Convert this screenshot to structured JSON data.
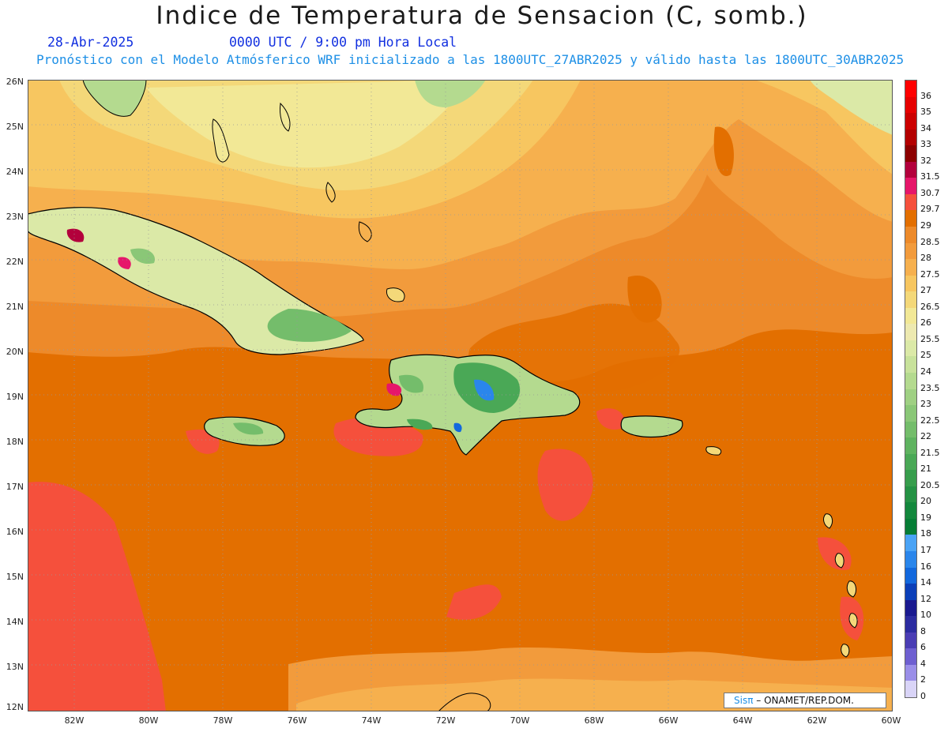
{
  "header": {
    "title": "Indice de Temperatura de Sensacion (C, somb.)",
    "date": "28-Abr-2025",
    "time": "0000 UTC / 9:00 pm Hora Local",
    "model_note": "Pronóstico con el Modelo Atmósferico WRF inicializado a las 1800UTC_27ABR2025 y válido hasta las  1800UTC_30ABR2025"
  },
  "axes": {
    "lat_labels": [
      "26N",
      "25N",
      "24N",
      "23N",
      "22N",
      "21N",
      "20N",
      "19N",
      "18N",
      "17N",
      "16N",
      "15N",
      "14N",
      "13N",
      "12N"
    ],
    "lon_labels": [
      "82W",
      "80W",
      "78W",
      "76W",
      "74W",
      "72W",
      "70W",
      "68W",
      "66W",
      "64W",
      "62W",
      "60W"
    ]
  },
  "colorbar": {
    "labels": [
      "36",
      "35",
      "34",
      "33",
      "32",
      "31.5",
      "30.7",
      "29.7",
      "29",
      "28.5",
      "28",
      "27.5",
      "27",
      "26.5",
      "26",
      "25.5",
      "25",
      "24",
      "23.5",
      "23",
      "22.5",
      "22",
      "21.5",
      "21",
      "20.5",
      "20",
      "19",
      "18",
      "17",
      "16",
      "14",
      "12",
      "10",
      "8",
      "6",
      "4",
      "2",
      "0"
    ],
    "colors": [
      "#ff0000",
      "#e60000",
      "#cc0000",
      "#b30000",
      "#8c0000",
      "#b3003c",
      "#e6166a",
      "#f5503c",
      "#e36f00",
      "#ed8a2a",
      "#f29b3c",
      "#f6b04e",
      "#f7c660",
      "#f4d879",
      "#f2e896",
      "#ede9b0",
      "#dbe9a7",
      "#c8e29b",
      "#b4da8f",
      "#9fd083",
      "#8ac777",
      "#74bd6b",
      "#5fb360",
      "#4aa856",
      "#379d4c",
      "#259244",
      "#13873c",
      "#067d35",
      "#4aa3f5",
      "#2a86eb",
      "#1268dd",
      "#0b3fb8",
      "#1a1a90",
      "#2c2ca0",
      "#4a3db4",
      "#6e5fd0",
      "#9a8ee8",
      "#d9d4f7"
    ]
  },
  "credit": {
    "sis": "Sisπ",
    "text": " – ONAMET/REP.DOM."
  }
}
